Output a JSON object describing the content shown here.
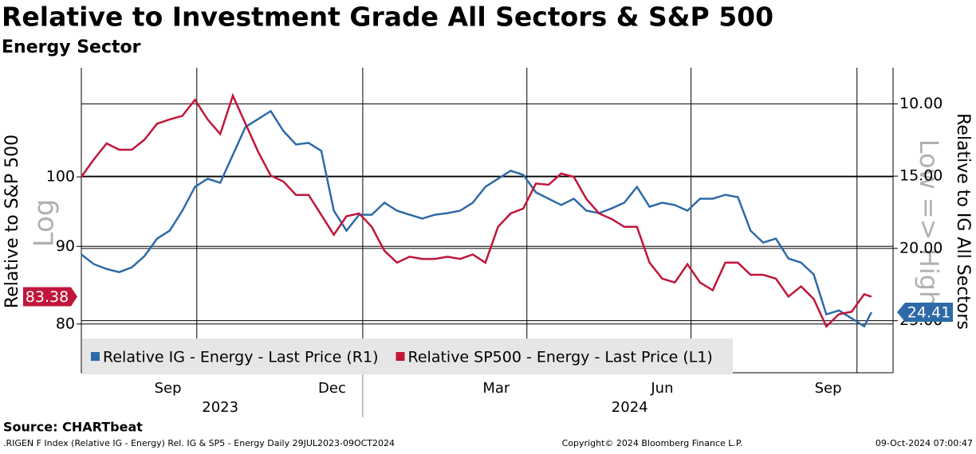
{
  "chart_data": {
    "type": "line",
    "title": "Relative to Investment Grade All Sectors & S&P 500",
    "subtitle": "Energy Sector",
    "y_label": "Relative to S&P 500",
    "y_note": "Log",
    "y2_label": "Relative to IG All Sectors",
    "y2_note": "Low => High",
    "source": "Source: CHARTbeat",
    "footer_left": ".RIGEN F Index (Relative IG - Energy) Rel. IG & SP5 - Energy  Daily 29JUL2023-09OCT2024",
    "footer_center": "Copyright© 2024 Bloomberg Finance L.P.",
    "footer_right": "09-Oct-2024 07:00:47",
    "x": [
      0,
      7,
      14,
      21,
      28,
      35,
      42,
      49,
      56,
      63,
      70,
      77,
      84,
      91,
      98,
      105,
      112,
      119,
      126,
      133,
      140,
      147,
      154,
      161,
      168,
      175,
      182,
      189,
      196,
      203,
      210,
      217,
      224,
      231,
      238,
      245,
      252,
      259,
      266,
      273,
      280,
      287,
      294,
      301,
      308,
      315,
      322,
      329,
      336,
      343,
      350,
      357,
      364,
      371,
      378,
      385,
      392,
      399,
      406,
      413,
      420,
      427,
      434,
      438
    ],
    "xlim": [
      0,
      450
    ],
    "xticks": [
      {
        "value": 48,
        "label": "Sep"
      },
      {
        "value": 139,
        "label": "Dec"
      },
      {
        "value": 230,
        "label": "Mar"
      },
      {
        "value": 322,
        "label": "Jun"
      },
      {
        "value": 414,
        "label": "Sep"
      }
    ],
    "year_ticks": [
      {
        "value": 77,
        "label": "2023"
      },
      {
        "value": 304,
        "label": "2024"
      }
    ],
    "year_breaks": [
      156
    ],
    "xgrid": [
      64,
      156,
      247,
      338,
      430
    ],
    "ylog": true,
    "ylim": [
      74.3,
      118
    ],
    "yticks": [
      80,
      90,
      100
    ],
    "y2lim": [
      28.6,
      7.5
    ],
    "y2ticks": [
      {
        "value": 10,
        "label": "10.00"
      },
      {
        "value": 15,
        "label": "15.00"
      },
      {
        "value": 20,
        "label": "20.00"
      },
      {
        "value": 25,
        "label": "25.00"
      }
    ],
    "grid": true,
    "series": [
      {
        "name": "Relative IG - Energy - Last Price (R1)",
        "color": "#2e6aa8",
        "axis": "y2",
        "last_label": "24.41",
        "values": [
          20.42,
          21.09,
          21.42,
          21.64,
          21.31,
          20.53,
          19.32,
          18.77,
          17.39,
          15.74,
          15.18,
          15.46,
          13.53,
          11.6,
          11.05,
          10.5,
          11.88,
          12.81,
          12.7,
          13.25,
          17.39,
          18.77,
          17.67,
          17.67,
          16.84,
          17.39,
          17.67,
          17.94,
          17.67,
          17.56,
          17.39,
          16.84,
          15.74,
          15.18,
          14.63,
          14.91,
          16.12,
          16.56,
          17.0,
          16.56,
          17.39,
          17.56,
          17.23,
          16.84,
          15.74,
          17.12,
          16.84,
          17.0,
          17.39,
          16.56,
          16.56,
          16.29,
          16.45,
          18.77,
          19.6,
          19.32,
          20.7,
          20.98,
          21.8,
          24.56,
          24.29,
          24.84,
          25.39,
          24.41
        ]
      },
      {
        "name": "Relative SP500 - Energy - Last Price (L1)",
        "color": "#c0163a",
        "axis": "y",
        "last_label": "83.38",
        "values": [
          100,
          102.7,
          105.2,
          104.2,
          104.2,
          105.8,
          108.4,
          109.1,
          109.7,
          112.4,
          109.1,
          106.7,
          113.1,
          108.4,
          103.9,
          100.2,
          99.3,
          97.3,
          97.3,
          94.4,
          91.6,
          94.2,
          94.6,
          92.7,
          89.4,
          87.8,
          88.6,
          88.3,
          88.3,
          88.6,
          88.3,
          88.9,
          87.8,
          92.7,
          94.6,
          95.3,
          99.0,
          98.8,
          100.5,
          100.0,
          96.7,
          94.6,
          93.8,
          92.7,
          92.7,
          87.8,
          85.7,
          85.2,
          87.6,
          85.2,
          84.2,
          87.8,
          87.8,
          86.2,
          86.2,
          85.7,
          83.4,
          84.7,
          83.1,
          79.7,
          81.2,
          81.5,
          83.7,
          83.38
        ]
      }
    ]
  }
}
